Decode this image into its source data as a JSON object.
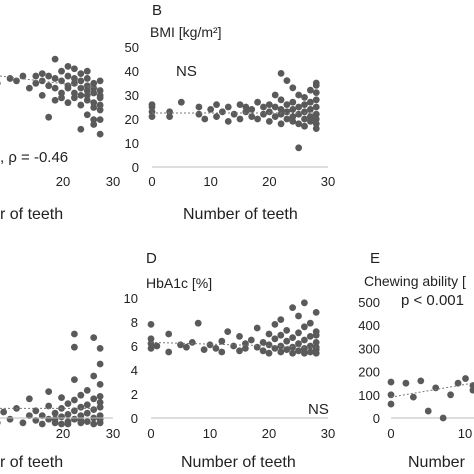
{
  "chart_data": [
    {
      "id": "panel-a",
      "type": "scatter",
      "panel_letter": "",
      "ylabel": "",
      "xlabel": "r of teeth",
      "annotation": ", ρ = -0.46",
      "xlim": [
        0,
        30
      ],
      "ylim": [
        0,
        50
      ],
      "xticks": [
        "20",
        "30"
      ],
      "yticks": [],
      "trend": [
        [
          0,
          42
        ],
        [
          28,
          33
        ]
      ],
      "points": [
        [
          2,
          38
        ],
        [
          4,
          37
        ],
        [
          6,
          38
        ],
        [
          8,
          36
        ],
        [
          10,
          38
        ],
        [
          12,
          35
        ],
        [
          14,
          37
        ],
        [
          15,
          36
        ],
        [
          16,
          38
        ],
        [
          17,
          33
        ],
        [
          18,
          35
        ],
        [
          18,
          38
        ],
        [
          19,
          36
        ],
        [
          19,
          30
        ],
        [
          20,
          34
        ],
        [
          20,
          38
        ],
        [
          21,
          37
        ],
        [
          21,
          33
        ],
        [
          21,
          28
        ],
        [
          22,
          36
        ],
        [
          22,
          40
        ],
        [
          22,
          31
        ],
        [
          22,
          29
        ],
        [
          23,
          34
        ],
        [
          23,
          38
        ],
        [
          23,
          27
        ],
        [
          23,
          33
        ],
        [
          24,
          37
        ],
        [
          24,
          31
        ],
        [
          24,
          35
        ],
        [
          24,
          29
        ],
        [
          24,
          41
        ],
        [
          25,
          33
        ],
        [
          25,
          36
        ],
        [
          25,
          26
        ],
        [
          25,
          30
        ],
        [
          25,
          39
        ],
        [
          26,
          34
        ],
        [
          26,
          28
        ],
        [
          26,
          32
        ],
        [
          26,
          37
        ],
        [
          26,
          22
        ],
        [
          26,
          30
        ],
        [
          27,
          35
        ],
        [
          27,
          27
        ],
        [
          27,
          31
        ],
        [
          27,
          18
        ],
        [
          27,
          33
        ],
        [
          27,
          25
        ],
        [
          28,
          36
        ],
        [
          28,
          29
        ],
        [
          28,
          32
        ],
        [
          28,
          24
        ],
        [
          28,
          14
        ],
        [
          28,
          20
        ],
        [
          28,
          26
        ],
        [
          28,
          30
        ],
        [
          20,
          21
        ],
        [
          21,
          45
        ],
        [
          25,
          16
        ],
        [
          19,
          39
        ],
        [
          23,
          42
        ],
        [
          27,
          20
        ],
        [
          26,
          40
        ]
      ]
    },
    {
      "id": "panel-b",
      "type": "scatter",
      "panel_letter": "B",
      "ylabel": "BMI [kg/m²]",
      "xlabel": "Number of teeth",
      "annotation": "NS",
      "xlim": [
        0,
        30
      ],
      "ylim": [
        0,
        50
      ],
      "xticks": [
        "0",
        "10",
        "20",
        "30"
      ],
      "yticks": [
        "0",
        "10",
        "20",
        "30",
        "40",
        "50"
      ],
      "trend": [
        [
          0,
          22.5
        ],
        [
          28,
          22.5
        ]
      ],
      "points": [
        [
          0,
          21
        ],
        [
          0,
          23
        ],
        [
          0,
          25
        ],
        [
          0,
          26
        ],
        [
          3,
          21
        ],
        [
          3,
          23
        ],
        [
          5,
          27
        ],
        [
          8,
          22
        ],
        [
          8,
          25
        ],
        [
          9,
          20
        ],
        [
          10,
          24
        ],
        [
          11,
          21
        ],
        [
          11,
          26
        ],
        [
          12,
          23
        ],
        [
          13,
          19
        ],
        [
          13,
          25
        ],
        [
          14,
          22
        ],
        [
          15,
          20
        ],
        [
          15,
          26
        ],
        [
          16,
          23
        ],
        [
          16,
          25
        ],
        [
          17,
          21
        ],
        [
          17,
          24
        ],
        [
          18,
          20
        ],
        [
          18,
          27
        ],
        [
          19,
          22
        ],
        [
          19,
          25
        ],
        [
          20,
          23
        ],
        [
          20,
          19
        ],
        [
          20,
          26
        ],
        [
          21,
          21
        ],
        [
          21,
          25
        ],
        [
          21,
          30
        ],
        [
          22,
          22
        ],
        [
          22,
          24
        ],
        [
          22,
          18
        ],
        [
          22,
          39
        ],
        [
          22,
          28
        ],
        [
          23,
          20
        ],
        [
          23,
          23
        ],
        [
          23,
          26
        ],
        [
          23,
          36
        ],
        [
          24,
          21
        ],
        [
          24,
          24
        ],
        [
          24,
          27
        ],
        [
          24,
          19
        ],
        [
          24,
          33
        ],
        [
          25,
          22
        ],
        [
          25,
          25
        ],
        [
          25,
          18
        ],
        [
          25,
          30
        ],
        [
          25,
          8
        ],
        [
          26,
          20
        ],
        [
          26,
          23
        ],
        [
          26,
          26
        ],
        [
          26,
          29
        ],
        [
          26,
          17
        ],
        [
          27,
          21
        ],
        [
          27,
          24
        ],
        [
          27,
          27
        ],
        [
          27,
          19
        ],
        [
          27,
          32
        ],
        [
          28,
          20
        ],
        [
          28,
          22
        ],
        [
          28,
          25
        ],
        [
          28,
          28
        ],
        [
          28,
          35
        ],
        [
          28,
          18
        ],
        [
          28,
          31
        ],
        [
          28,
          16
        ],
        [
          28,
          34
        ]
      ]
    },
    {
      "id": "panel-c",
      "type": "scatter",
      "panel_letter": "",
      "ylabel": "",
      "xlabel": "r of teeth",
      "annotation": "",
      "xlim": [
        0,
        30
      ],
      "ylim": [
        0,
        10
      ],
      "xticks": [
        "20",
        "30"
      ],
      "yticks": [],
      "trend": [
        [
          0,
          1.8
        ],
        [
          28,
          1.8
        ]
      ],
      "points": [
        [
          2,
          2.5
        ],
        [
          6,
          1.2
        ],
        [
          8,
          1.8
        ],
        [
          10,
          1.0
        ],
        [
          11,
          2.2
        ],
        [
          12,
          0.6
        ],
        [
          13,
          1.5
        ],
        [
          14,
          0.9
        ],
        [
          15,
          1.8
        ],
        [
          16,
          0.6
        ],
        [
          17,
          1.2
        ],
        [
          17,
          2.6
        ],
        [
          18,
          0.8
        ],
        [
          18,
          1.6
        ],
        [
          19,
          0.5
        ],
        [
          19,
          1.2
        ],
        [
          20,
          0.9
        ],
        [
          20,
          2.0
        ],
        [
          20,
          3.2
        ],
        [
          21,
          0.6
        ],
        [
          21,
          1.4
        ],
        [
          21,
          0.9
        ],
        [
          22,
          0.5
        ],
        [
          22,
          1.1
        ],
        [
          22,
          1.8
        ],
        [
          22,
          2.7
        ],
        [
          23,
          0.7
        ],
        [
          23,
          1.3
        ],
        [
          23,
          2.2
        ],
        [
          23,
          0.5
        ],
        [
          24,
          0.9
        ],
        [
          24,
          1.6
        ],
        [
          24,
          2.5
        ],
        [
          24,
          4.2
        ],
        [
          24,
          8.0
        ],
        [
          24,
          6.9
        ],
        [
          25,
          0.6
        ],
        [
          25,
          1.2
        ],
        [
          25,
          1.9
        ],
        [
          25,
          2.9
        ],
        [
          25,
          0.8
        ],
        [
          26,
          0.7
        ],
        [
          26,
          1.4
        ],
        [
          26,
          2.1
        ],
        [
          26,
          3.3
        ],
        [
          27,
          0.5
        ],
        [
          27,
          1.0
        ],
        [
          27,
          1.7
        ],
        [
          27,
          2.6
        ],
        [
          27,
          4.5
        ],
        [
          27,
          7.7
        ],
        [
          28,
          0.6
        ],
        [
          28,
          1.2
        ],
        [
          28,
          1.9
        ],
        [
          28,
          2.8
        ],
        [
          28,
          3.8
        ],
        [
          28,
          5.5
        ],
        [
          28,
          6.8
        ],
        [
          28,
          0.9
        ],
        [
          28,
          2.3
        ]
      ]
    },
    {
      "id": "panel-d",
      "type": "scatter",
      "panel_letter": "D",
      "ylabel": "HbA1c [%]",
      "xlabel": "Number of teeth",
      "annotation": "NS",
      "xlim": [
        0,
        30
      ],
      "ylim": [
        0,
        10
      ],
      "xticks": [
        "0",
        "10",
        "20",
        "30"
      ],
      "yticks": [
        "0",
        "2",
        "4",
        "6",
        "8",
        "10"
      ],
      "trend": [
        [
          0,
          6.3
        ],
        [
          28,
          5.9
        ]
      ],
      "points": [
        [
          0,
          5.8
        ],
        [
          0,
          6.2
        ],
        [
          0,
          6.6
        ],
        [
          0,
          7.8
        ],
        [
          1,
          6.0
        ],
        [
          3,
          5.5
        ],
        [
          3,
          7.0
        ],
        [
          5,
          6.1
        ],
        [
          6,
          5.9
        ],
        [
          7,
          6.3
        ],
        [
          8,
          7.9
        ],
        [
          9,
          5.7
        ],
        [
          10,
          6.1
        ],
        [
          11,
          5.8
        ],
        [
          12,
          6.4
        ],
        [
          12,
          5.5
        ],
        [
          13,
          7.2
        ],
        [
          14,
          6.0
        ],
        [
          15,
          5.6
        ],
        [
          15,
          6.8
        ],
        [
          16,
          6.2
        ],
        [
          16,
          5.8
        ],
        [
          17,
          6.5
        ],
        [
          18,
          5.9
        ],
        [
          18,
          7.5
        ],
        [
          19,
          6.3
        ],
        [
          19,
          5.6
        ],
        [
          20,
          6.1
        ],
        [
          20,
          7.0
        ],
        [
          20,
          5.4
        ],
        [
          21,
          5.8
        ],
        [
          21,
          6.6
        ],
        [
          21,
          7.8
        ],
        [
          22,
          6.0
        ],
        [
          22,
          5.5
        ],
        [
          22,
          6.9
        ],
        [
          22,
          8.2
        ],
        [
          23,
          5.7
        ],
        [
          23,
          6.4
        ],
        [
          23,
          7.3
        ],
        [
          24,
          5.9
        ],
        [
          24,
          5.4
        ],
        [
          24,
          6.7
        ],
        [
          24,
          9.2
        ],
        [
          25,
          6.2
        ],
        [
          25,
          5.6
        ],
        [
          25,
          7.1
        ],
        [
          25,
          8.5
        ],
        [
          26,
          5.8
        ],
        [
          26,
          6.5
        ],
        [
          26,
          5.4
        ],
        [
          26,
          7.6
        ],
        [
          26,
          9.6
        ],
        [
          27,
          6.0
        ],
        [
          27,
          5.5
        ],
        [
          27,
          6.8
        ],
        [
          27,
          7.9
        ],
        [
          28,
          5.7
        ],
        [
          28,
          6.3
        ],
        [
          28,
          5.4
        ],
        [
          28,
          7.2
        ],
        [
          28,
          8.8
        ],
        [
          28,
          6.9
        ],
        [
          28,
          5.9
        ]
      ]
    },
    {
      "id": "panel-e",
      "type": "scatter",
      "panel_letter": "E",
      "ylabel": "Chewing ability [",
      "xlabel": "Number",
      "annotation": "p < 0.001",
      "xlim": [
        0,
        20
      ],
      "ylim": [
        0,
        500
      ],
      "xticks": [
        "0",
        "10"
      ],
      "yticks": [
        "0",
        "100",
        "200",
        "300",
        "400",
        "500"
      ],
      "trend": [
        [
          0,
          90
        ],
        [
          20,
          200
        ]
      ],
      "points": [
        [
          0,
          155
        ],
        [
          0,
          60
        ],
        [
          0,
          100
        ],
        [
          2,
          150
        ],
        [
          3,
          90
        ],
        [
          4,
          160
        ],
        [
          5,
          30
        ],
        [
          6,
          130
        ],
        [
          7,
          0
        ],
        [
          8,
          100
        ],
        [
          9,
          150
        ],
        [
          10,
          170
        ],
        [
          11,
          120
        ],
        [
          11,
          140
        ],
        [
          12,
          160
        ],
        [
          13,
          130
        ],
        [
          13,
          200
        ]
      ]
    }
  ]
}
